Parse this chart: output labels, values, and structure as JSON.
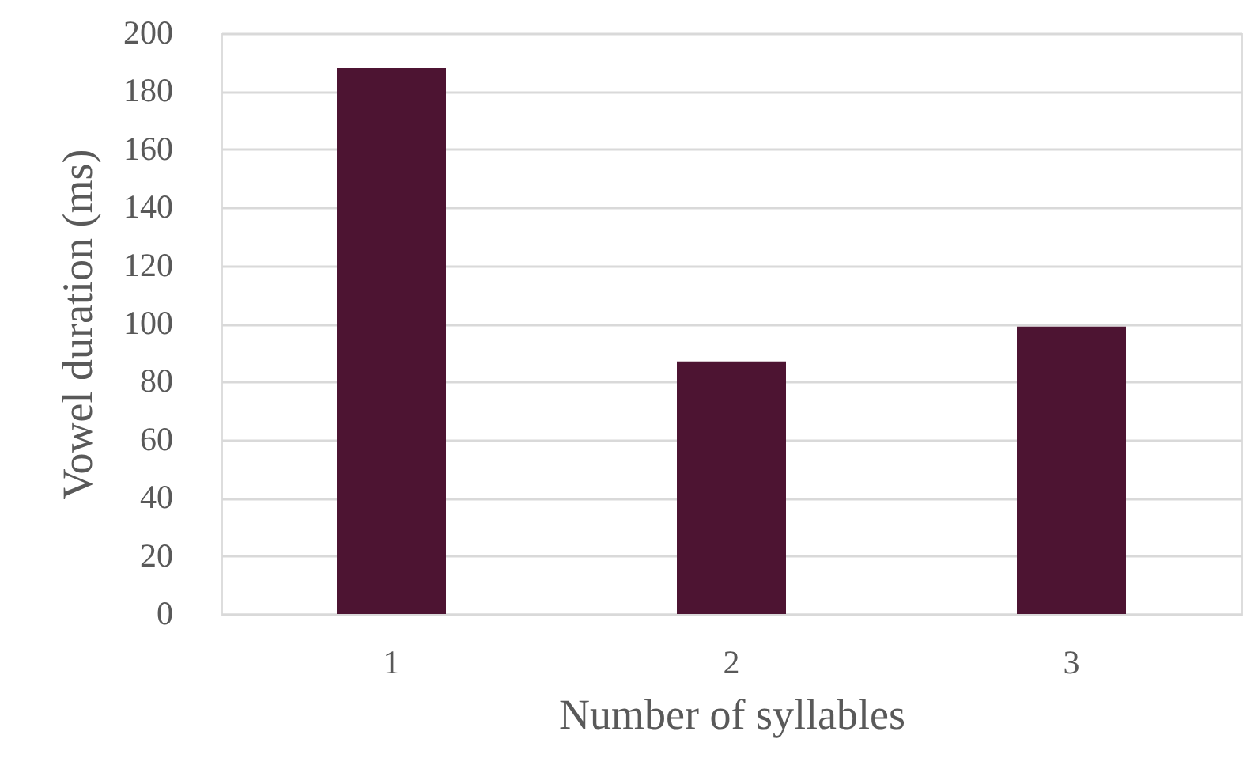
{
  "chart_data": {
    "type": "bar",
    "categories": [
      "1",
      "2",
      "3"
    ],
    "values": [
      188,
      87,
      99
    ],
    "color": "#4d1432",
    "xlabel": "Number of syllables",
    "ylabel": "Vowel duration (ms)",
    "ylim": [
      0,
      200
    ],
    "yticks": [
      0,
      20,
      40,
      60,
      80,
      100,
      120,
      140,
      160,
      180,
      200
    ],
    "grid": "y"
  }
}
